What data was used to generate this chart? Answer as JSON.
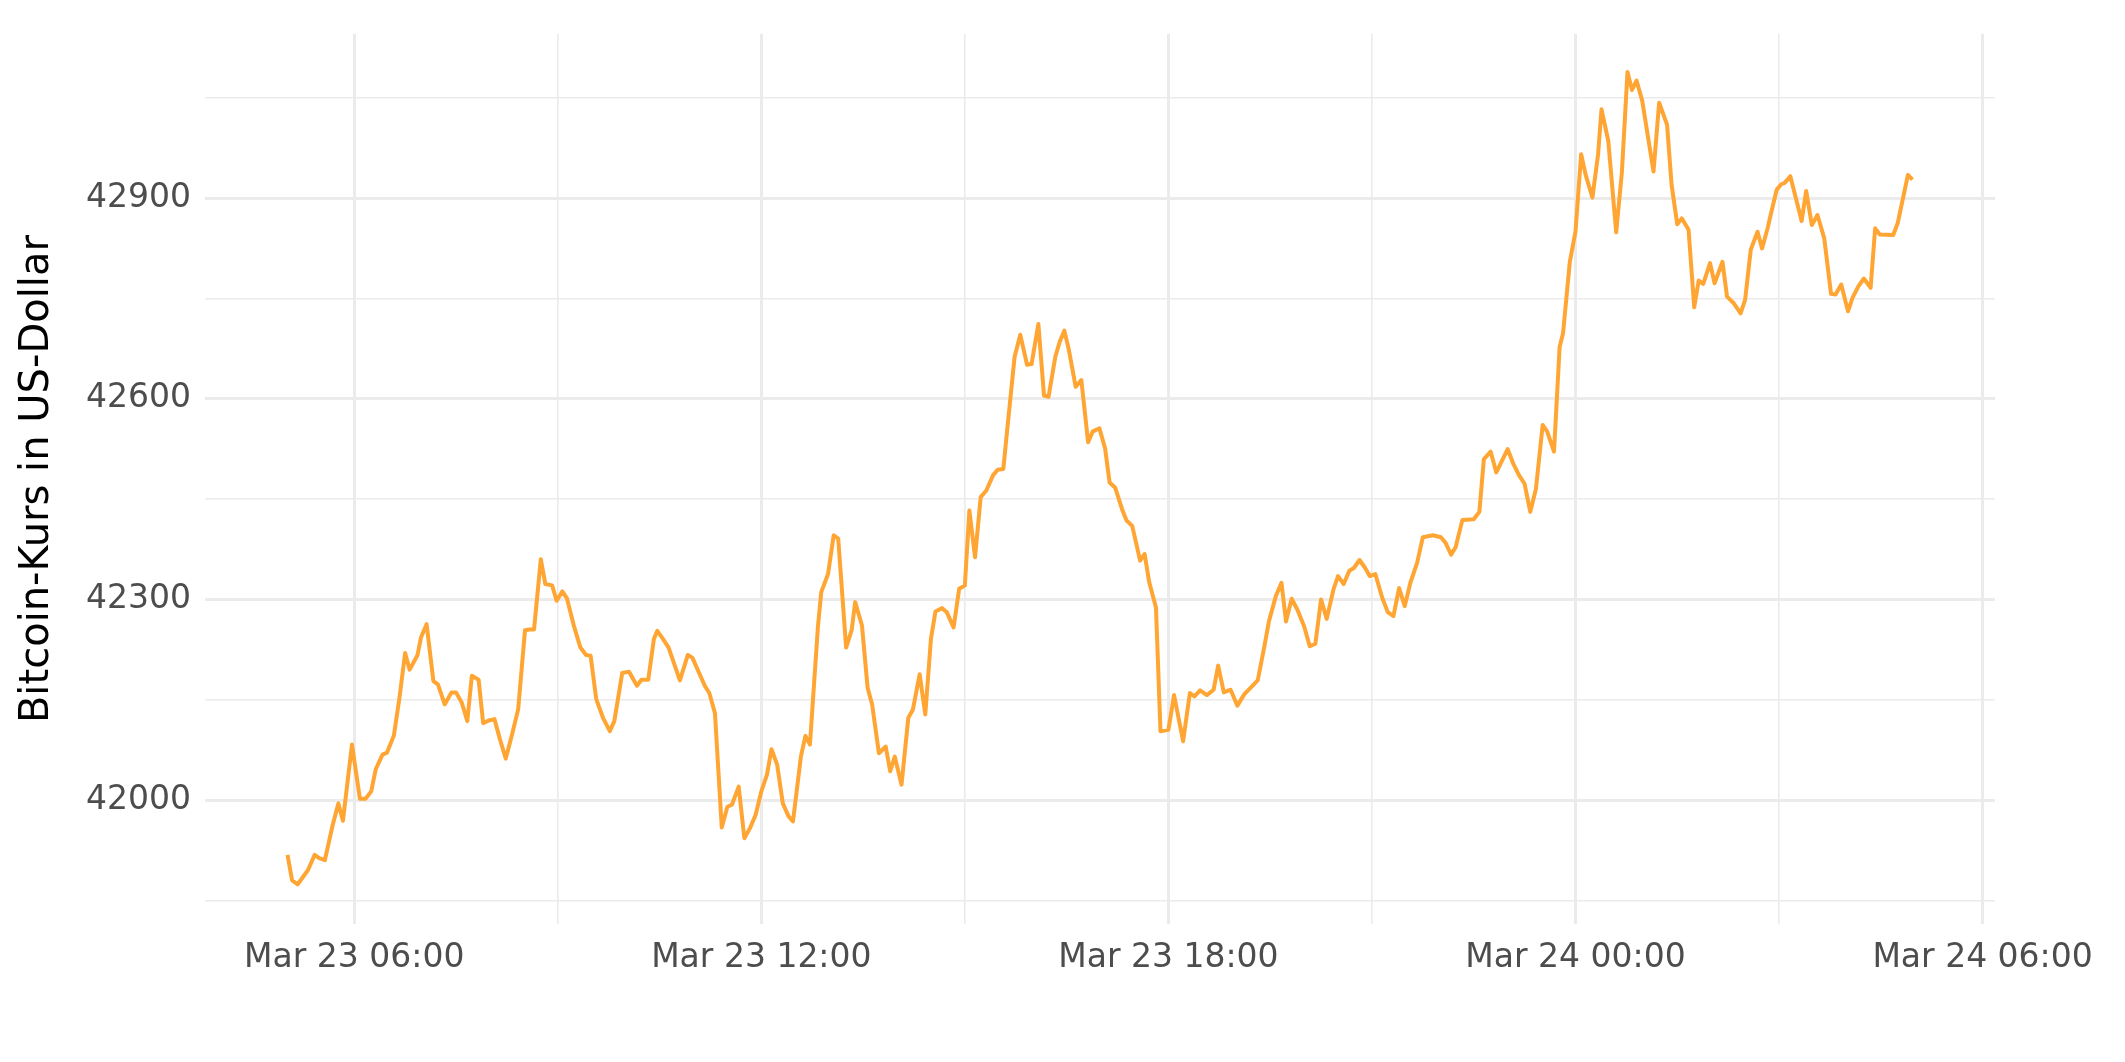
{
  "chart_data": {
    "type": "line",
    "ylabel": "Bitcoin-Kurs in US-Dollar",
    "color": "#ffa533",
    "grid": true,
    "xlim": [
      "--03-23T03:48",
      "--03-24T06:11"
    ],
    "ylim": [
      41814,
      43146
    ],
    "xticks": [
      {
        "value": "--03-23T06:00",
        "label": "Mar 23 06:00"
      },
      {
        "value": "--03-23T09:00",
        "label": null
      },
      {
        "value": "--03-23T12:00",
        "label": "Mar 23 12:00"
      },
      {
        "value": "--03-23T15:00",
        "label": null
      },
      {
        "value": "--03-23T18:00",
        "label": "Mar 23 18:00"
      },
      {
        "value": "--03-23T21:00",
        "label": null
      },
      {
        "value": "--03-24T00:00",
        "label": "Mar 24 00:00"
      },
      {
        "value": "--03-24T03:00",
        "label": null
      },
      {
        "value": "--03-24T06:00",
        "label": "Mar 24 06:00"
      }
    ],
    "yticks": [
      {
        "value": 41850,
        "label": null
      },
      42000,
      {
        "value": 42150,
        "label": null
      },
      42300,
      {
        "value": 42450,
        "label": null
      },
      42600,
      {
        "value": 42750,
        "label": null
      },
      42900,
      {
        "value": 43050,
        "label": null
      }
    ],
    "x": [
      "--03-23T05:01",
      "--03-23T05:05",
      "--03-23T05:10",
      "--03-23T05:19",
      "--03-23T05:25",
      "--03-23T05:29",
      "--03-23T05:34",
      "--03-23T05:41",
      "--03-23T05:46",
      "--03-23T05:50",
      "--03-23T05:58",
      "--03-23T06:05",
      "--03-23T06:10",
      "--03-23T06:15",
      "--03-23T06:19",
      "--03-23T06:25",
      "--03-23T06:29",
      "--03-23T06:35",
      "--03-23T06:40",
      "--03-23T06:45",
      "--03-23T06:49",
      "--03-23T06:56",
      "--03-23T06:59",
      "--03-23T07:04",
      "--03-23T07:10",
      "--03-23T07:14",
      "--03-23T07:20",
      "--03-23T07:26",
      "--03-23T07:30",
      "--03-23T07:35",
      "--03-23T07:40",
      "--03-23T07:44",
      "--03-23T07:50",
      "--03-23T07:54",
      "--03-23T07:59",
      "--03-23T08:04",
      "--03-23T08:09",
      "--03-23T08:14",
      "--03-23T08:20",
      "--03-23T08:25",
      "--03-23T08:31",
      "--03-23T08:35",
      "--03-23T08:39",
      "--03-23T08:45",
      "--03-23T08:49",
      "--03-23T08:55",
      "--03-23T08:59",
      "--03-23T09:04",
      "--03-23T09:08",
      "--03-23T09:14",
      "--03-23T09:20",
      "--03-23T09:25",
      "--03-23T09:29",
      "--03-23T09:34",
      "--03-23T09:40",
      "--03-23T09:46",
      "--03-23T09:50",
      "--03-23T09:57",
      "--03-23T10:03",
      "--03-23T10:10",
      "--03-23T10:14",
      "--03-23T10:20",
      "--03-23T10:25",
      "--03-23T10:28",
      "--03-23T10:33",
      "--03-23T10:38",
      "--03-23T10:48",
      "--03-23T10:55",
      "--03-23T10:59",
      "--03-23T11:10",
      "--03-23T11:14",
      "--03-23T11:19",
      "--03-23T11:25",
      "--03-23T11:30",
      "--03-23T11:34",
      "--03-23T11:40",
      "--03-23T11:45",
      "--03-23T11:50",
      "--03-23T11:55",
      "--03-23T12:00",
      "--03-23T12:05",
      "--03-23T12:09",
      "--03-23T12:14",
      "--03-23T12:19",
      "--03-23T12:24",
      "--03-23T12:28",
      "--03-23T12:35",
      "--03-23T12:39",
      "--03-23T12:43",
      "--03-23T12:50",
      "--03-23T12:53",
      "--03-23T12:59",
      "--03-23T13:04",
      "--03-23T13:08",
      "--03-23T13:15",
      "--03-23T13:20",
      "--03-23T13:23",
      "--03-23T13:29",
      "--03-23T13:34",
      "--03-23T13:38",
      "--03-23T13:44",
      "--03-23T13:50",
      "--03-23T13:54",
      "--03-23T13:58",
      "--03-23T14:04",
      "--03-23T14:10",
      "--03-23T14:14",
      "--03-23T14:20",
      "--03-23T14:25",
      "--03-23T14:30",
      "--03-23T14:34",
      "--03-23T14:40",
      "--03-23T14:44",
      "--03-23T14:50",
      "--03-23T14:55",
      "--03-23T15:00",
      "--03-23T15:04",
      "--03-23T15:09",
      "--03-23T15:14",
      "--03-23T15:19",
      "--03-23T15:25",
      "--03-23T15:29",
      "--03-23T15:34",
      "--03-23T15:38",
      "--03-23T15:44",
      "--03-23T15:49",
      "--03-23T15:55",
      "--03-23T15:59",
      "--03-23T16:05",
      "--03-23T16:10",
      "--03-23T16:14",
      "--03-23T16:20",
      "--03-23T16:24",
      "--03-23T16:28",
      "--03-23T16:32",
      "--03-23T16:38",
      "--03-23T16:43",
      "--03-23T16:49",
      "--03-23T16:53",
      "--03-23T16:59",
      "--03-23T17:04",
      "--03-23T17:08",
      "--03-23T17:13",
      "--03-23T17:19",
      "--03-23T17:23",
      "--03-23T17:28",
      "--03-23T17:35",
      "--03-23T17:39",
      "--03-23T17:43",
      "--03-23T17:49",
      "--03-23T17:53",
      "--03-23T18:00",
      "--03-23T18:05",
      "--03-23T18:13",
      "--03-23T18:19",
      "--03-23T18:23",
      "--03-23T18:28",
      "--03-23T18:34",
      "--03-23T18:40",
      "--03-23T18:44",
      "--03-23T18:49",
      "--03-23T18:55",
      "--03-23T19:01",
      "--03-23T19:07",
      "--03-23T19:19",
      "--03-23T19:25",
      "--03-23T19:29",
      "--03-23T19:35",
      "--03-23T19:40",
      "--03-23T19:44",
      "--03-23T19:49",
      "--03-23T19:54",
      "--03-23T20:00",
      "--03-23T20:05",
      "--03-23T20:10",
      "--03-23T20:15",
      "--03-23T20:20",
      "--03-23T20:26",
      "--03-23T20:30",
      "--03-23T20:35",
      "--03-23T20:40",
      "--03-23T20:44",
      "--03-23T20:49",
      "--03-23T20:54",
      "--03-23T20:58",
      "--03-23T21:03",
      "--03-23T21:09",
      "--03-23T21:14",
      "--03-23T21:19",
      "--03-23T21:24",
      "--03-23T21:29",
      "--03-23T21:34",
      "--03-23T21:40",
      "--03-23T21:45",
      "--03-23T21:54",
      "--03-23T22:01",
      "--03-23T22:05",
      "--03-23T22:10",
      "--03-23T22:14",
      "--03-23T22:20",
      "--03-23T22:30",
      "--03-23T22:35",
      "--03-23T22:39",
      "--03-23T22:45",
      "--03-23T22:50",
      "--03-23T23:00",
      "--03-23T23:05",
      "--03-23T23:10",
      "--03-23T23:15",
      "--03-23T23:20",
      "--03-23T23:25",
      "--03-23T23:31",
      "--03-23T23:35",
      "--03-23T23:41",
      "--03-23T23:46",
      "--03-23T23:49",
      "--03-23T23:55",
      "--03-24T00:00",
      "--03-24T00:05",
      "--03-24T00:09",
      "--03-24T00:15",
      "--03-24T00:20",
      "--03-24T00:23",
      "--03-24T00:29",
      "--03-24T00:36",
      "--03-24T00:41",
      "--03-24T00:46",
      "--03-24T00:50",
      "--03-24T00:54",
      "--03-24T00:59",
      "--03-24T01:09",
      "--03-24T01:14",
      "--03-24T01:21",
      "--03-24T01:25",
      "--03-24T01:30",
      "--03-24T01:34",
      "--03-24T01:40",
      "--03-24T01:45",
      "--03-24T01:49",
      "--03-24T01:53",
      "--03-24T01:59",
      "--03-24T02:03",
      "--03-24T02:10",
      "--03-24T02:14",
      "--03-24T02:20",
      "--03-24T02:26",
      "--03-24T02:30",
      "--03-24T02:35",
      "--03-24T02:41",
      "--03-24T02:45",
      "--03-24T02:50",
      "--03-24T02:53",
      "--03-24T02:58",
      "--03-24T03:02",
      "--03-24T03:05",
      "--03-24T03:10",
      "--03-24T03:20",
      "--03-24T03:24",
      "--03-24T03:29",
      "--03-24T03:34",
      "--03-24T03:40",
      "--03-24T03:46",
      "--03-24T03:50",
      "--03-24T03:55",
      "--03-24T04:01",
      "--03-24T04:05",
      "--03-24T04:10",
      "--03-24T04:15",
      "--03-24T04:21",
      "--03-24T04:25",
      "--03-24T04:29",
      "--03-24T04:41",
      "--03-24T04:45",
      "--03-24T04:54",
      "--03-24T04:58"
    ],
    "values": [
      41918,
      41880,
      41874,
      41895,
      41918,
      41913,
      41910,
      41963,
      41995,
      41969,
      42083,
      42002,
      42002,
      42013,
      42046,
      42068,
      42071,
      42096,
      42153,
      42220,
      42195,
      42217,
      42243,
      42263,
      42178,
      42173,
      42143,
      42161,
      42161,
      42146,
      42118,
      42186,
      42180,
      42115,
      42119,
      42121,
      42090,
      42062,
      42101,
      42136,
      42254,
      42255,
      42255,
      42360,
      42323,
      42321,
      42298,
      42312,
      42302,
      42262,
      42228,
      42217,
      42216,
      42151,
      42123,
      42103,
      42118,
      42190,
      42192,
      42171,
      42180,
      42180,
      42241,
      42253,
      42241,
      42228,
      42179,
      42217,
      42213,
      42171,
      42160,
      42130,
      41959,
      41990,
      41993,
      42020,
      41943,
      41958,
      41978,
      42013,
      42038,
      42076,
      42053,
      41995,
      41976,
      41968,
      42065,
      42096,
      42083,
      42258,
      42311,
      42338,
      42396,
      42391,
      42228,
      42255,
      42296,
      42261,
      42168,
      42143,
      42070,
      42080,
      42043,
      42065,
      42023,
      42123,
      42135,
      42188,
      42128,
      42241,
      42282,
      42287,
      42281,
      42258,
      42316,
      42321,
      42433,
      42363,
      42453,
      42463,
      42486,
      42494,
      42495,
      42563,
      42663,
      42696,
      42651,
      42652,
      42712,
      42605,
      42603,
      42663,
      42686,
      42702,
      42673,
      42618,
      42628,
      42535,
      42551,
      42556,
      42526,
      42475,
      42467,
      42435,
      42418,
      42410,
      42358,
      42368,
      42326,
      42288,
      42103,
      42105,
      42157,
      42088,
      42160,
      42155,
      42164,
      42157,
      42165,
      42201,
      42161,
      42165,
      42141,
      42158,
      42179,
      42231,
      42268,
      42305,
      42325,
      42267,
      42301,
      42285,
      42260,
      42230,
      42234,
      42300,
      42271,
      42315,
      42335,
      42323,
      42343,
      42347,
      42359,
      42347,
      42335,
      42338,
      42303,
      42281,
      42275,
      42317,
      42290,
      42325,
      42355,
      42393,
      42396,
      42393,
      42385,
      42367,
      42378,
      42419,
      42420,
      42431,
      42510,
      42521,
      42490,
      42525,
      42503,
      42486,
      42473,
      42431,
      42465,
      42561,
      42551,
      42521,
      42678,
      42698,
      42805,
      42850,
      42966,
      42935,
      42901,
      42966,
      43033,
      42986,
      42849,
      42938,
      43089,
      43062,
      43076,
      43046,
      42940,
      43043,
      43010,
      42920,
      42861,
      42870,
      42853,
      42737,
      42777,
      42772,
      42803,
      42773,
      42805,
      42753,
      42743,
      42728,
      42748,
      42823,
      42850,
      42825,
      42856,
      42878,
      42913,
      42921,
      42923,
      42933,
      42866,
      42911,
      42860,
      42875,
      42840,
      42757,
      42756,
      42771,
      42731,
      42751,
      42768,
      42780,
      42766,
      42855,
      42846,
      42845,
      42863,
      42935,
      42928
    ]
  }
}
